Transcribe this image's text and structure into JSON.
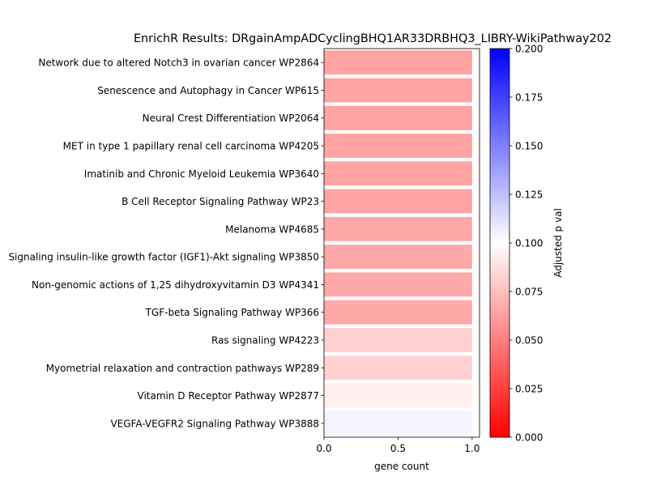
{
  "chart_data": {
    "type": "bar",
    "orientation": "horizontal",
    "title": "EnrichR Results: DRgainAmpADCyclingBHQ1AR33DRBHQ3_LIBRY-WikiPathway202",
    "xlabel": "gene count",
    "ylabel": "",
    "xlim": [
      0,
      1.05
    ],
    "xticks": [
      "0.0",
      "0.5",
      "1.0"
    ],
    "grid": false,
    "categories": [
      "Network due to altered Notch3 in ovarian cancer WP2864",
      "Senescence and Autophagy in Cancer WP615",
      "Neural Crest Differentiation WP2064",
      "MET in type 1 papillary renal cell carcinoma WP4205",
      "Imatinib and Chronic Myeloid Leukemia WP3640",
      "B Cell Receptor Signaling Pathway WP23",
      "Melanoma WP4685",
      "Signaling insulin-like growth factor (IGF1)-Akt signaling WP3850",
      "Non-genomic actions of 1,25 dihydroxyvitamin D3 WP4341",
      "TGF-beta Signaling Pathway WP366",
      "Ras signaling WP4223",
      "Myometrial relaxation and contraction pathways WP289",
      "Vitamin D Receptor Pathway WP2877",
      "VEGFA-VEGFR2 Signaling Pathway WP3888"
    ],
    "values": [
      1,
      1,
      1,
      1,
      1,
      1,
      1,
      1,
      1,
      1,
      1,
      1,
      1,
      1
    ],
    "adjusted_p": [
      0.0397,
      0.0397,
      0.0397,
      0.0397,
      0.0397,
      0.0397,
      0.043,
      0.043,
      0.043,
      0.043,
      0.07,
      0.07,
      0.09,
      0.107
    ],
    "colorbar": {
      "label": "Adjusted p val",
      "range": [
        0,
        0.2
      ],
      "ticks": [
        "0.000",
        "0.025",
        "0.050",
        "0.075",
        "0.100",
        "0.125",
        "0.150",
        "0.175",
        "0.200"
      ],
      "colors": [
        "#ff0000",
        "#ffffff",
        "#0000ff"
      ]
    }
  }
}
